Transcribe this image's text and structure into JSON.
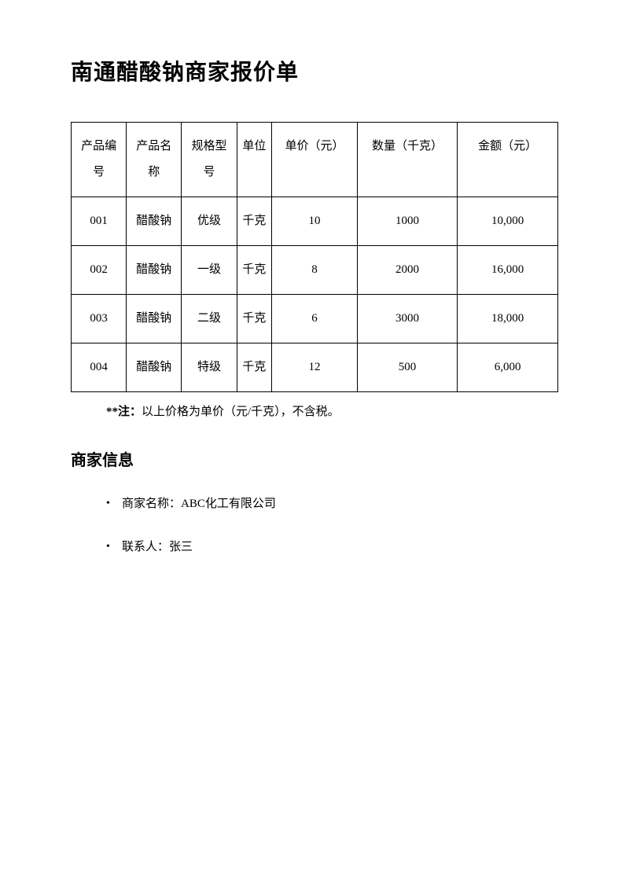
{
  "title": "南通醋酸钠商家报价单",
  "table": {
    "columns": [
      "产品编号",
      "产品名称",
      "规格型号",
      "单位",
      "单价（元）",
      "数量（千克）",
      "金额（元）"
    ],
    "rows": [
      [
        "001",
        "醋酸钠",
        "优级",
        "千克",
        "10",
        "1000",
        "10,000"
      ],
      [
        "002",
        "醋酸钠",
        "一级",
        "千克",
        "8",
        "2000",
        "16,000"
      ],
      [
        "003",
        "醋酸钠",
        "二级",
        "千克",
        "6",
        "3000",
        "18,000"
      ],
      [
        "004",
        "醋酸钠",
        "特级",
        "千克",
        "12",
        "500",
        "6,000"
      ]
    ]
  },
  "note_prefix": "**注：",
  "note_text": "以上价格为单价（元/千克），不含税。",
  "section_title": "商家信息",
  "info_items": [
    "商家名称：ABC化工有限公司",
    "联系人：张三"
  ]
}
